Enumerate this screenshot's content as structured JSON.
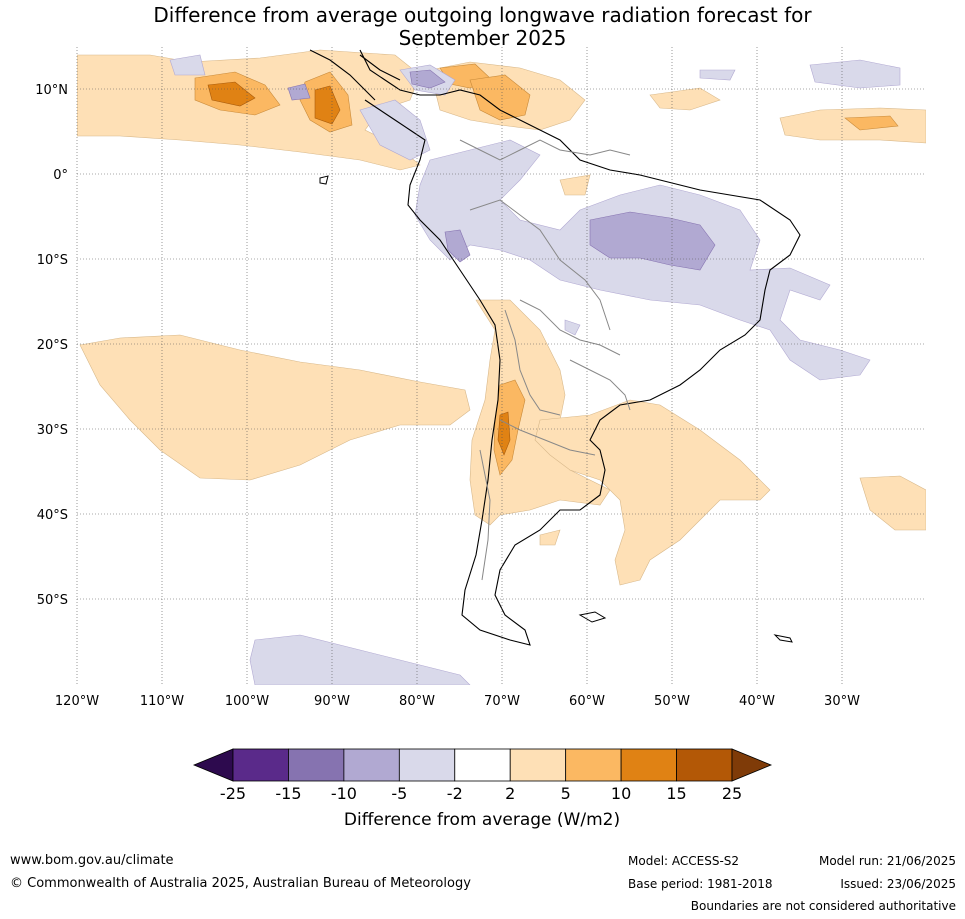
{
  "title": {
    "line1": "Difference from average outgoing longwave radiation forecast for",
    "line2": "September 2025"
  },
  "map": {
    "lat_labels": [
      "10°N",
      "0°",
      "10°S",
      "20°S",
      "30°S",
      "40°S",
      "50°S"
    ],
    "lon_labels": [
      "120°W",
      "110°W",
      "100°W",
      "90°W",
      "80°W",
      "70°W",
      "60°W",
      "50°W",
      "40°W",
      "30°W"
    ]
  },
  "colorbar": {
    "tick_labels": [
      "-25",
      "-15",
      "-10",
      "-5",
      "-2",
      "2",
      "5",
      "10",
      "15",
      "25"
    ],
    "label": "Difference from average (W/m2)",
    "colors": [
      "#2d0a4e",
      "#5a2a8a",
      "#8673b0",
      "#b1a9d2",
      "#d9d9ea",
      "#ffffff",
      "#fee0b6",
      "#fbb862",
      "#e08214",
      "#b35806",
      "#7f3b08"
    ]
  },
  "footer": {
    "website": "www.bom.gov.au/climate",
    "copyright": "© Commonwealth of Australia 2025, Australian Bureau of Meteorology",
    "model": "Model: ACCESS-S2",
    "model_run": "Model run: 21/06/2025",
    "base_period": "Base period: 1981-2018",
    "issued": "Issued: 23/06/2025",
    "disclaimer": "Boundaries are not considered authoritative"
  }
}
